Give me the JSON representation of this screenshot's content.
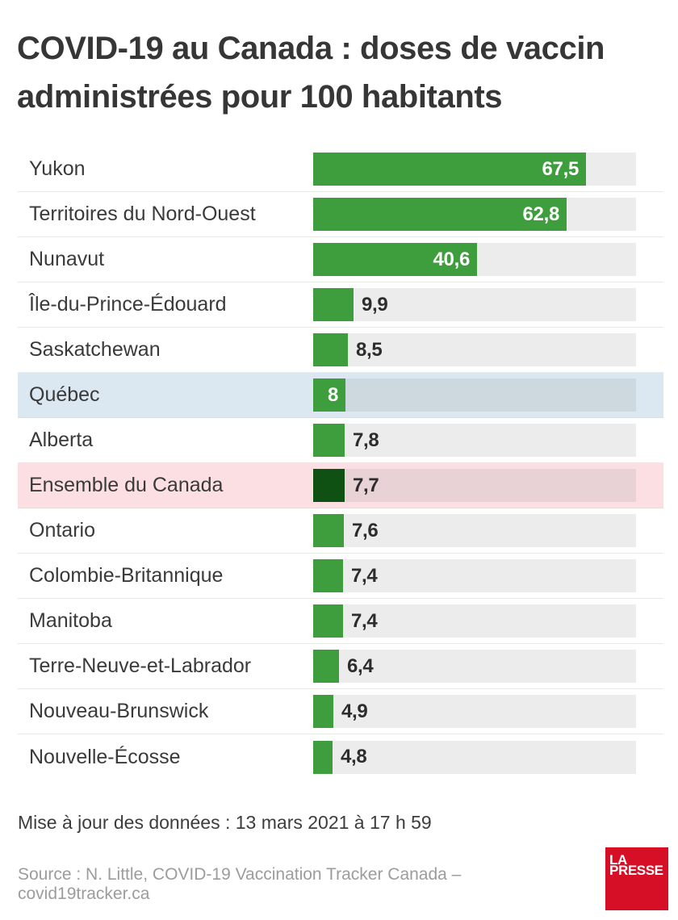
{
  "header": {
    "title_lines": [
      "COVID-19 au Canada : doses de vaccin",
      "administrées pour 100 habitants"
    ]
  },
  "chart_data": {
    "type": "bar",
    "orientation": "horizontal",
    "title": "COVID-19 au Canada : doses de vaccin administrées pour 100 habitants",
    "xlim": [
      0,
      80
    ],
    "grid": false,
    "legend": "none",
    "decimal_separator": "comma",
    "rows": [
      {
        "label": "Yukon",
        "value": 67.5,
        "display": "67,5",
        "label_inside": true,
        "highlight": "none"
      },
      {
        "label": "Territoires du Nord-Ouest",
        "value": 62.8,
        "display": "62,8",
        "label_inside": true,
        "highlight": "none"
      },
      {
        "label": "Nunavut",
        "value": 40.6,
        "display": "40,6",
        "label_inside": true,
        "highlight": "none"
      },
      {
        "label": "Île-du-Prince-Édouard",
        "value": 9.9,
        "display": "9,9",
        "label_inside": false,
        "highlight": "none"
      },
      {
        "label": "Saskatchewan",
        "value": 8.5,
        "display": "8,5",
        "label_inside": false,
        "highlight": "none"
      },
      {
        "label": "Québec",
        "value": 8,
        "display": "8",
        "label_inside": true,
        "highlight": "quebec"
      },
      {
        "label": "Alberta",
        "value": 7.8,
        "display": "7,8",
        "label_inside": false,
        "highlight": "none"
      },
      {
        "label": "Ensemble du Canada",
        "value": 7.7,
        "display": "7,7",
        "label_inside": false,
        "highlight": "canada"
      },
      {
        "label": "Ontario",
        "value": 7.6,
        "display": "7,6",
        "label_inside": false,
        "highlight": "none"
      },
      {
        "label": "Colombie-Britannique",
        "value": 7.4,
        "display": "7,4",
        "label_inside": false,
        "highlight": "none"
      },
      {
        "label": "Manitoba",
        "value": 7.4,
        "display": "7,4",
        "label_inside": false,
        "highlight": "none"
      },
      {
        "label": "Terre-Neuve-et-Labrador",
        "value": 6.4,
        "display": "6,4",
        "label_inside": false,
        "highlight": "none"
      },
      {
        "label": "Nouveau-Brunswick",
        "value": 4.9,
        "display": "4,9",
        "label_inside": false,
        "highlight": "none"
      },
      {
        "label": "Nouvelle-Écosse",
        "value": 4.8,
        "display": "4,8",
        "label_inside": false,
        "highlight": "none"
      }
    ]
  },
  "footer": {
    "updated": "Mise à jour des données : 13 mars 2021 à 17 h 59",
    "source": "Source : N. Little, COVID-19 Vaccination Tracker Canada – covid19tracker.ca"
  },
  "logo": {
    "lines": [
      "LA",
      "PRESSE"
    ]
  },
  "colors": {
    "bar_green": "#3e9e3e",
    "bar_dark_green": "#0e5113",
    "track_gray": "#ececec",
    "quebec_row_bg": "#dce8f1",
    "quebec_track": "#cdd8df",
    "canada_row_bg": "#fbdfe2",
    "canada_track": "#e8d2d5",
    "title_text": "#363636",
    "value_text": "#2d2d2d",
    "source_text": "#9c9c9c",
    "logo_red": "#d60f26"
  }
}
